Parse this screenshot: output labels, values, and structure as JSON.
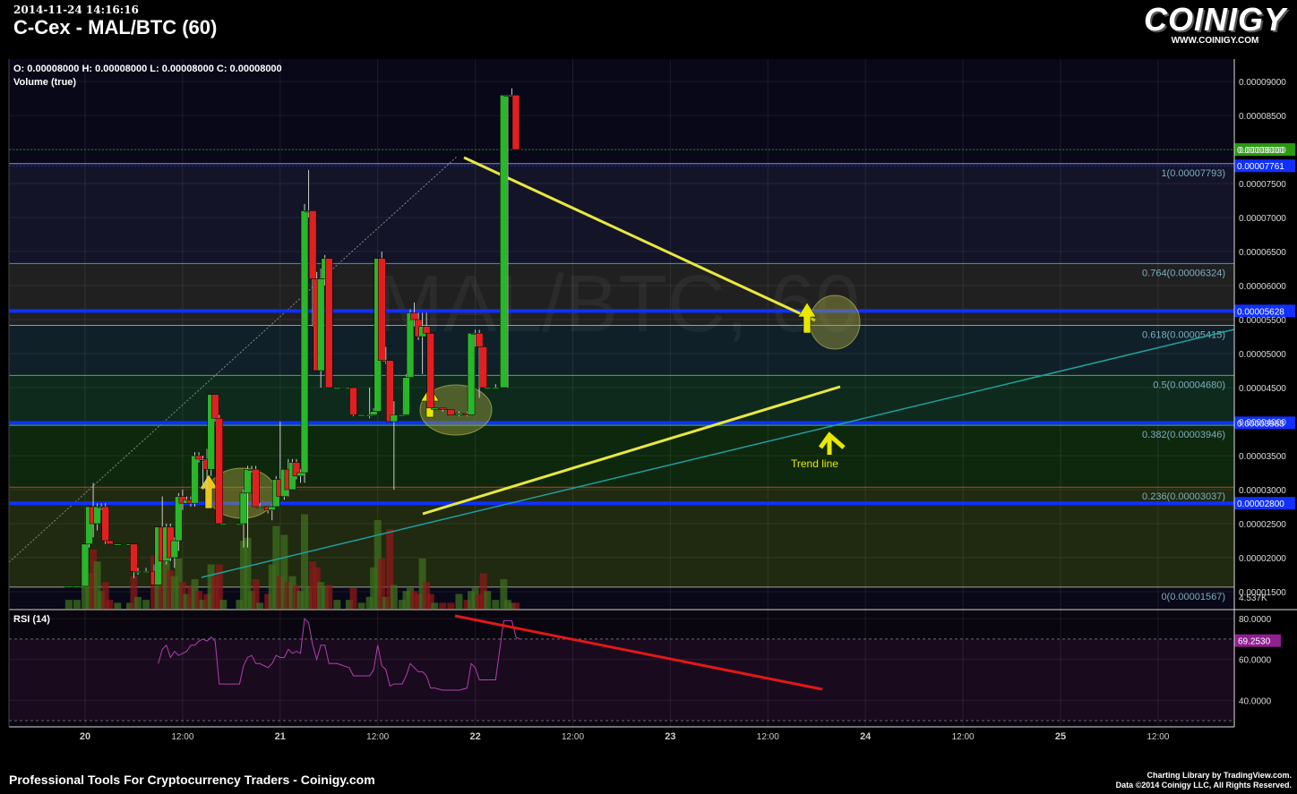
{
  "header": {
    "timestamp": "2014-11-24 14:16:16",
    "title": "C-Cex - MAL/BTC (60)",
    "logo_word": "COINIGY",
    "logo_url": "WWW.COINIGY.COM"
  },
  "footer": {
    "left": "Professional Tools For Cryptocurrency Traders - Coinigy.com",
    "right_line1": "Charting Library by TradingView.com.",
    "right_line2": "Data ©2014 Coinigy LLC, All Rights Reserved."
  },
  "chart_data": {
    "type": "candlestick",
    "ohlc_legend": "O: 0.00008000 H: 0.00008000 L: 0.00008000 C: 0.00008000",
    "volume_legend": "Volume (true)",
    "watermark": "MAL/BTC, 60",
    "price_axis": {
      "ticks": [
        "0.00009000",
        "0.00008500",
        "0.00008000",
        "0.00007500",
        "0.00007000",
        "0.00006500",
        "0.00006000",
        "0.00005500",
        "0.00005000",
        "0.00004500",
        "0.00004000",
        "0.00003500",
        "0.00003000",
        "0.00002500",
        "0.00002000",
        "0.00001500"
      ],
      "range": [
        1.25e-05,
        9.33e-05
      ],
      "volume_label": "4.537K"
    },
    "time_axis": {
      "ticks": [
        {
          "label": "20",
          "hour": 0,
          "bold": true
        },
        {
          "label": "12:00",
          "hour": 12,
          "bold": false
        },
        {
          "label": "21",
          "hour": 24,
          "bold": true
        },
        {
          "label": "12:00",
          "hour": 36,
          "bold": false
        },
        {
          "label": "22",
          "hour": 48,
          "bold": true
        },
        {
          "label": "12:00",
          "hour": 60,
          "bold": false
        },
        {
          "label": "23",
          "hour": 72,
          "bold": true
        },
        {
          "label": "12:00",
          "hour": 84,
          "bold": false
        },
        {
          "label": "24",
          "hour": 96,
          "bold": true
        },
        {
          "label": "12:00",
          "hour": 108,
          "bold": false
        },
        {
          "label": "25",
          "hour": 120,
          "bold": true
        },
        {
          "label": "12:00",
          "hour": 132,
          "bold": false
        }
      ]
    },
    "fib_levels": [
      {
        "ratio": "1",
        "price": 7.793e-05,
        "label": "1(0.00007793)",
        "fill": "#141428"
      },
      {
        "ratio": "0.764",
        "price": 6.324e-05,
        "label": "0.764(0.00006324)",
        "fill": "#202020"
      },
      {
        "ratio": "0.618",
        "price": 5.415e-05,
        "label": "0.618(0.00005415)",
        "fill": "#102028"
      },
      {
        "ratio": "0.5",
        "price": 4.68e-05,
        "label": "0.5(0.00004680)",
        "fill": "#0e2a1c"
      },
      {
        "ratio": "0.382",
        "price": 3.946e-05,
        "label": "0.382(0.00003946)",
        "fill": "#0e280e"
      },
      {
        "ratio": "0.236",
        "price": 3.037e-05,
        "label": "0.236(0.00003037)",
        "fill": "#202a10"
      },
      {
        "ratio": "0",
        "price": 1.567e-05,
        "label": "0(0.00001567)",
        "fill": "#2a0e0e"
      }
    ],
    "horizontal_lines": [
      {
        "price": 5.628e-05,
        "label": "0.00005628",
        "color": "#1030ff"
      },
      {
        "price": 3.983e-05,
        "label": "0.00003983",
        "color": "#1030ff"
      },
      {
        "price": 2.8e-05,
        "label": "0.00002800",
        "color": "#1030ff"
      }
    ],
    "price_badges": [
      {
        "price": 8e-05,
        "label": "0.00008000",
        "color": "#2a9a10"
      },
      {
        "price": 7.761e-05,
        "label": "0.00007761",
        "color": "#1030ff"
      }
    ],
    "annotation_text": "Trend line",
    "candles": [
      [
        -2,
        1.58e-05,
        1.58e-05,
        1.58e-05,
        1.58e-05,
        0.3
      ],
      [
        -1,
        1.58e-05,
        1.58e-05,
        1.58e-05,
        1.58e-05,
        0.3
      ],
      [
        0,
        1.58e-05,
        2.2e-05,
        1.58e-05,
        2.2e-05,
        0.8
      ],
      [
        0.5,
        2.2e-05,
        2.75e-05,
        2.15e-05,
        2.75e-05,
        1.2
      ],
      [
        1,
        2.75e-05,
        3.1e-05,
        2.3e-05,
        2.5e-05,
        2.0
      ],
      [
        1.5,
        2.5e-05,
        2.8e-05,
        2.4e-05,
        2.75e-05,
        1.6
      ],
      [
        2,
        2.75e-05,
        2.8e-05,
        2.7e-05,
        2.75e-05,
        0.6
      ],
      [
        2.5,
        2.75e-05,
        2.8e-05,
        2.2e-05,
        2.25e-05,
        0.9
      ],
      [
        3,
        2.25e-05,
        2.25e-05,
        2.2e-05,
        2.2e-05,
        0.3
      ],
      [
        4,
        2.2e-05,
        2.2e-05,
        2.2e-05,
        2.2e-05,
        0.2
      ],
      [
        5.5,
        2.2e-05,
        2.2e-05,
        2.2e-05,
        2.2e-05,
        0.2
      ],
      [
        6,
        2.2e-05,
        2.2e-05,
        1.7e-05,
        1.8e-05,
        1.1
      ],
      [
        6.5,
        1.8e-05,
        1.85e-05,
        1.75e-05,
        1.8e-05,
        0.4
      ],
      [
        7.5,
        1.8e-05,
        1.85e-05,
        1.78e-05,
        1.8e-05,
        0.3
      ],
      [
        8.5,
        1.8e-05,
        1.9e-05,
        1.6e-05,
        1.6e-05,
        1.8
      ],
      [
        9,
        1.6e-05,
        2.45e-05,
        1.6e-05,
        2.45e-05,
        1.6
      ],
      [
        9.5,
        2.45e-05,
        2.9e-05,
        1.95e-05,
        1.95e-05,
        2.6
      ],
      [
        10,
        1.95e-05,
        2.5e-05,
        1.9e-05,
        2.45e-05,
        1.9
      ],
      [
        10.5,
        2.45e-05,
        2.5e-05,
        1.95e-05,
        2e-05,
        1.3
      ],
      [
        11,
        2e-05,
        2.3e-05,
        1.85e-05,
        2.25e-05,
        1.1
      ],
      [
        11.5,
        2.25e-05,
        2.95e-05,
        2.1e-05,
        2.9e-05,
        1.7
      ],
      [
        12,
        2.9e-05,
        3e-05,
        2.7e-05,
        2.8e-05,
        0.9
      ],
      [
        12.5,
        2.8e-05,
        2.9e-05,
        2.8e-05,
        2.85e-05,
        0.5
      ],
      [
        13,
        2.85e-05,
        2.9e-05,
        2.75e-05,
        2.8e-05,
        0.8
      ],
      [
        13.5,
        2.8e-05,
        3.55e-05,
        2.75e-05,
        3.5e-05,
        1.0
      ],
      [
        14,
        3.5e-05,
        3.55e-05,
        3.4e-05,
        3.45e-05,
        0.6
      ],
      [
        14.5,
        3.45e-05,
        3.5e-05,
        3e-05,
        3.45e-05,
        0.3
      ],
      [
        15,
        3.45e-05,
        3.6e-05,
        3e-05,
        3.3e-05,
        0.5
      ],
      [
        15.5,
        3.3e-05,
        4.4e-05,
        3.2e-05,
        4.4e-05,
        1.5
      ],
      [
        16,
        4.4e-05,
        4.4e-05,
        4e-05,
        4.05e-05,
        1.1
      ],
      [
        16.5,
        4.05e-05,
        4.1e-05,
        2.5e-05,
        2.5e-05,
        1.5
      ],
      [
        17,
        2.5e-05,
        2.5e-05,
        2.48e-05,
        2.5e-05,
        0.3
      ],
      [
        19,
        2.5e-05,
        2.5e-05,
        2.48e-05,
        2.5e-05,
        0.3
      ],
      [
        19.5,
        2.5e-05,
        3e-05,
        2.15e-05,
        2.95e-05,
        2.3
      ],
      [
        20,
        2.95e-05,
        3.35e-05,
        2.15e-05,
        3.3e-05,
        2.4
      ],
      [
        20.5,
        3.3e-05,
        3.35e-05,
        3.25e-05,
        3.3e-05,
        0.6
      ],
      [
        21,
        3.3e-05,
        3.35e-05,
        2.75e-05,
        2.75e-05,
        1.0
      ],
      [
        21.5,
        2.75e-05,
        2.8e-05,
        2.72e-05,
        2.75e-05,
        0.2
      ],
      [
        22.5,
        2.75e-05,
        2.75e-05,
        2.65e-05,
        2.7e-05,
        0.5
      ],
      [
        23,
        2.7e-05,
        2.75e-05,
        2.55e-05,
        2.75e-05,
        1.5
      ],
      [
        23.5,
        2.75e-05,
        3.2e-05,
        2.75e-05,
        3.15e-05,
        2.8
      ],
      [
        24,
        3.15e-05,
        4e-05,
        2.95e-05,
        2.9e-05,
        1.1
      ],
      [
        24.5,
        2.9e-05,
        3.3e-05,
        2.85e-05,
        3.3e-05,
        2.5
      ],
      [
        25,
        3.3e-05,
        3.45e-05,
        2.9e-05,
        3e-05,
        0.9
      ],
      [
        25.5,
        3e-05,
        3.45e-05,
        3e-05,
        3.4e-05,
        1.1
      ],
      [
        26,
        3.4e-05,
        3.45e-05,
        3.15e-05,
        3.2e-05,
        0.8
      ],
      [
        26.5,
        3.2e-05,
        3.3e-05,
        3.1e-05,
        3.25e-05,
        0.6
      ],
      [
        27,
        3.25e-05,
        7.2e-05,
        3.1e-05,
        7.1e-05,
        3.2
      ],
      [
        27.5,
        7.1e-05,
        7.7e-05,
        7e-05,
        7.1e-05,
        0.7
      ],
      [
        28,
        7.1e-05,
        7.1e-05,
        5.4e-05,
        6.1e-05,
        1.6
      ],
      [
        28.5,
        6.1e-05,
        6.2e-05,
        4.75e-05,
        4.75e-05,
        1.4
      ],
      [
        29,
        4.75e-05,
        6.25e-05,
        4.5e-05,
        6.1e-05,
        0.9
      ],
      [
        29.5,
        6.1e-05,
        6.45e-05,
        6e-05,
        6.4e-05,
        0.7
      ],
      [
        30,
        6.4e-05,
        6.4e-05,
        4.5e-05,
        4.5e-05,
        0.8
      ],
      [
        31,
        4.5e-05,
        4.5e-05,
        4.48e-05,
        4.5e-05,
        0.3
      ],
      [
        32.5,
        4.5e-05,
        4.5e-05,
        4.48e-05,
        4.5e-05,
        0.3
      ],
      [
        33,
        4.5e-05,
        4.5e-05,
        4.08e-05,
        4.1e-05,
        0.7
      ],
      [
        34,
        4.1e-05,
        4.1e-05,
        4.08e-05,
        4.1e-05,
        0.2
      ],
      [
        35,
        4.1e-05,
        4.5e-05,
        4.05e-05,
        4.1e-05,
        0.4
      ],
      [
        35.5,
        4.1e-05,
        4.2e-05,
        4.1e-05,
        4.15e-05,
        1.4
      ],
      [
        36,
        4.15e-05,
        6.4e-05,
        4.15e-05,
        6.4e-05,
        3.0
      ],
      [
        36.5,
        6.4e-05,
        6.5e-05,
        4.9e-05,
        4.9e-05,
        1.7
      ],
      [
        37,
        4.9e-05,
        5.1e-05,
        4.85e-05,
        4.9e-05,
        0.4
      ],
      [
        37.5,
        4.9e-05,
        4.9e-05,
        4e-05,
        4e-05,
        2.7
      ],
      [
        38,
        4e-05,
        4.3e-05,
        3e-05,
        4.1e-05,
        0.8
      ],
      [
        39,
        4.1e-05,
        4.1e-05,
        4.08e-05,
        4.1e-05,
        0.3
      ],
      [
        39.5,
        4.1e-05,
        4.7e-05,
        4.1e-05,
        4.65e-05,
        0.6
      ],
      [
        40,
        4.65e-05,
        5.65e-05,
        4.65e-05,
        5.6e-05,
        0.7
      ],
      [
        40.5,
        5.6e-05,
        5.75e-05,
        5.4e-05,
        5.5e-05,
        0.6
      ],
      [
        41,
        5.5e-05,
        5.6e-05,
        5.2e-05,
        5.25e-05,
        0.5
      ],
      [
        41.5,
        5.25e-05,
        5.6e-05,
        4.7e-05,
        5.4e-05,
        1.7
      ],
      [
        42,
        5.4e-05,
        5.6e-05,
        5.35e-05,
        5.3e-05,
        0.9
      ],
      [
        42.5,
        5.3e-05,
        5.3e-05,
        4.2e-05,
        4.2e-05,
        0.5
      ],
      [
        43,
        4.2e-05,
        4.2e-05,
        4.18e-05,
        4.2e-05,
        0.2
      ],
      [
        44,
        4.2e-05,
        4.2e-05,
        4.15e-05,
        4.18e-05,
        0.2
      ],
      [
        45,
        4.18e-05,
        4.18e-05,
        4.1e-05,
        4.1e-05,
        0.2
      ],
      [
        46,
        4.1e-05,
        4.15e-05,
        4.08e-05,
        4.12e-05,
        0.5
      ],
      [
        47,
        4.12e-05,
        4.15e-05,
        4.08e-05,
        4.1e-05,
        0.3
      ],
      [
        47.5,
        4.1e-05,
        5.3e-05,
        4.1e-05,
        5.3e-05,
        0.6
      ],
      [
        48,
        5.3e-05,
        5.35e-05,
        5.1e-05,
        5.3e-05,
        0.7
      ],
      [
        48.5,
        5.3e-05,
        5.35e-05,
        4.35e-05,
        5.1e-05,
        0.5
      ],
      [
        49,
        5.1e-05,
        5.1e-05,
        4.5e-05,
        4.5e-05,
        1.2
      ],
      [
        49.5,
        4.5e-05,
        4.5e-05,
        4.48e-05,
        4.5e-05,
        0.6
      ],
      [
        50.5,
        4.5e-05,
        4.55e-05,
        4.48e-05,
        4.5e-05,
        0.3
      ],
      [
        51.5,
        4.5e-05,
        8.8e-05,
        4.5e-05,
        8.8e-05,
        1.0
      ],
      [
        52,
        8.8e-05,
        8.8e-05,
        4.5e-05,
        8.8e-05,
        0.3
      ],
      [
        52.5,
        8.8e-05,
        8.9e-05,
        8.78e-05,
        8.8e-05,
        0.2
      ],
      [
        53,
        8.8e-05,
        8.8e-05,
        8e-05,
        8e-05,
        0.2
      ]
    ],
    "rsi": {
      "label": "RSI (14)",
      "current": "69.2530",
      "ticks": [
        "80.0000",
        "60.0000",
        "40.0000"
      ],
      "range": [
        27,
        84
      ],
      "bands": [
        70,
        30
      ],
      "points": [
        [
          9,
          58
        ],
        [
          9.5,
          65
        ],
        [
          10,
          67
        ],
        [
          10.5,
          61
        ],
        [
          11,
          64
        ],
        [
          11.5,
          62
        ],
        [
          12,
          63
        ],
        [
          12.5,
          64
        ],
        [
          13,
          67
        ],
        [
          13.5,
          67
        ],
        [
          14,
          69
        ],
        [
          14.5,
          70
        ],
        [
          15,
          69
        ],
        [
          15.5,
          71
        ],
        [
          16,
          69
        ],
        [
          16.5,
          48
        ],
        [
          17,
          48
        ],
        [
          19,
          48
        ],
        [
          19.5,
          57
        ],
        [
          20,
          61
        ],
        [
          20.5,
          62
        ],
        [
          21,
          58
        ],
        [
          21.5,
          58
        ],
        [
          22.5,
          56
        ],
        [
          23,
          58
        ],
        [
          23.5,
          62
        ],
        [
          24,
          61
        ],
        [
          24.5,
          61
        ],
        [
          25,
          65
        ],
        [
          25.5,
          63
        ],
        [
          26,
          64
        ],
        [
          26.5,
          63
        ],
        [
          27,
          80
        ],
        [
          27.5,
          78
        ],
        [
          28,
          67
        ],
        [
          28.5,
          60
        ],
        [
          29,
          67
        ],
        [
          29.5,
          67
        ],
        [
          30,
          58
        ],
        [
          31,
          58
        ],
        [
          32.5,
          56
        ],
        [
          33,
          52
        ],
        [
          34,
          52
        ],
        [
          35,
          52
        ],
        [
          35.5,
          55
        ],
        [
          36,
          67
        ],
        [
          36.5,
          57
        ],
        [
          37,
          55
        ],
        [
          37.5,
          47
        ],
        [
          38,
          48
        ],
        [
          39,
          48
        ],
        [
          39.5,
          52
        ],
        [
          40,
          58
        ],
        [
          40.5,
          56
        ],
        [
          41,
          54
        ],
        [
          41.5,
          54
        ],
        [
          42,
          52
        ],
        [
          42.5,
          46
        ],
        [
          43,
          46
        ],
        [
          44,
          45
        ],
        [
          45,
          45
        ],
        [
          46,
          45
        ],
        [
          47,
          46
        ],
        [
          47.5,
          58
        ],
        [
          48,
          56
        ],
        [
          48.5,
          50
        ],
        [
          49,
          50
        ],
        [
          50.5,
          50
        ],
        [
          51.5,
          79
        ],
        [
          52,
          79
        ],
        [
          52.5,
          79
        ],
        [
          53,
          71
        ],
        [
          53.5,
          70
        ]
      ]
    }
  }
}
